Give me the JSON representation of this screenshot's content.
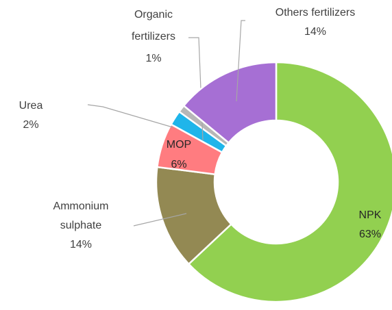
{
  "chart_data": {
    "type": "donut",
    "categories": [
      "NPK",
      "Ammonium sulphate",
      "MOP",
      "Urea",
      "Organic fertilizers",
      "Others fertilizers"
    ],
    "values": [
      63,
      14,
      6,
      2,
      1,
      14
    ],
    "value_labels": [
      "63%",
      "14%",
      "6%",
      "2%",
      "1%",
      "14%"
    ],
    "colors": [
      "#92d050",
      "#938953",
      "#ff7c80",
      "#1fb5ea",
      "#b7b7b7",
      "#a66fd4"
    ]
  }
}
